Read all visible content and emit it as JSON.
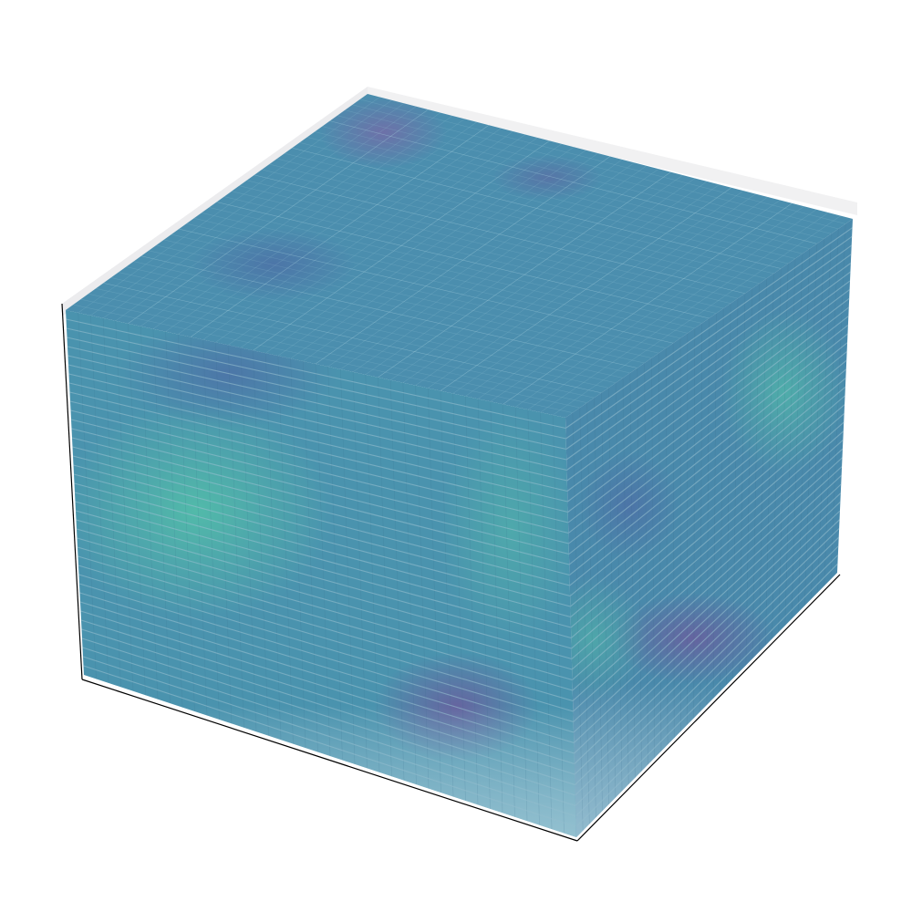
{
  "chart_data": {
    "type": "voxel-3d",
    "title": "",
    "xlabel": "",
    "ylabel": "",
    "zlabel": "",
    "colormap": "mako",
    "colors": {
      "pane_back": "#ececee",
      "pane_right": "#f1f1f2",
      "axis_line": "#000000",
      "face_default": "#4a8cab",
      "top_purple": "#6f70a6",
      "front_teal": "#4cb3a8",
      "front_purple": "#6a64a0",
      "layer_line": "#9fc6d6",
      "cell_edge": "#3b6f8a"
    },
    "layers": 40,
    "grid_resolution": 40,
    "axes_visible": false,
    "ticks": [],
    "grid": false
  }
}
